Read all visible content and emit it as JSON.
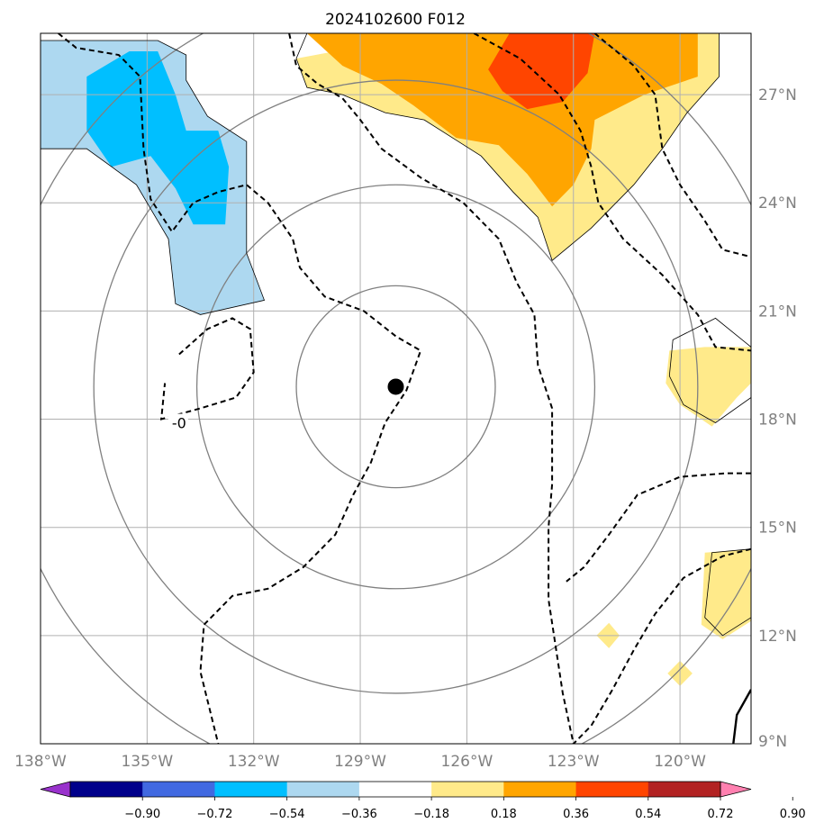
{
  "chart_data": {
    "type": "heatmap",
    "title": "2024102600 F012",
    "x_ticks": [
      "138°W",
      "135°W",
      "132°W",
      "129°W",
      "126°W",
      "123°W",
      "120°W"
    ],
    "x_tick_values": [
      -138,
      -135,
      -132,
      -129,
      -126,
      -123,
      -120
    ],
    "y_ticks": [
      "27°N",
      "24°N",
      "21°N",
      "18°N",
      "15°N",
      "12°N",
      "9°N"
    ],
    "y_tick_values": [
      27,
      24,
      21,
      18,
      15,
      12,
      9
    ],
    "xlim": [
      -138,
      -118
    ],
    "ylim": [
      9,
      28.7
    ],
    "grid": true,
    "center_marker": {
      "lon": -128.0,
      "lat": 18.9
    },
    "range_rings": [
      {
        "center": [
          -128.0,
          18.9
        ],
        "radius_deg": 2.8
      },
      {
        "center": [
          -128.0,
          18.9
        ],
        "radius_deg": 5.6
      },
      {
        "center": [
          -128.0,
          18.9
        ],
        "radius_deg": 8.5
      },
      {
        "center": [
          -128.0,
          18.9
        ],
        "radius_deg": 11.2
      }
    ],
    "colorbar": {
      "ticks": [
        "−0.90",
        "−0.72",
        "−0.54",
        "−0.36",
        "−0.18",
        "0.18",
        "0.36",
        "0.54",
        "0.72",
        "0.90"
      ],
      "levels": [
        -0.9,
        -0.72,
        -0.54,
        -0.36,
        -0.18,
        0.18,
        0.36,
        0.54,
        0.72,
        0.9
      ],
      "colors": [
        "#9932cc",
        "#00008b",
        "#4169e1",
        "#00bfff",
        "#add8f0",
        "#ffffff",
        "#ffea8a",
        "#ffa500",
        "#ff4500",
        "#b22222",
        "#ff80b0"
      ],
      "extend": "both"
    },
    "filled_regions": [
      {
        "level": "-0.18 to -0.36",
        "color": "#add8f0",
        "polygon": [
          [
            -138,
            28.5
          ],
          [
            -134.7,
            28.5
          ],
          [
            -133.9,
            28.1
          ],
          [
            -133.9,
            27.4
          ],
          [
            -133.3,
            26.4
          ],
          [
            -132.2,
            25.7
          ],
          [
            -132.2,
            22.6
          ],
          [
            -131.7,
            21.3
          ],
          [
            -133.5,
            20.9
          ],
          [
            -134.2,
            21.2
          ],
          [
            -134.4,
            23.0
          ],
          [
            -135.3,
            24.5
          ],
          [
            -136.7,
            25.5
          ],
          [
            -138,
            25.5
          ]
        ]
      },
      {
        "level": "-0.36 to -0.54",
        "color": "#00bfff",
        "polygon": [
          [
            -136.7,
            27.5
          ],
          [
            -135.5,
            28.2
          ],
          [
            -134.7,
            28.2
          ],
          [
            -134.2,
            27.0
          ],
          [
            -133.9,
            26.0
          ],
          [
            -133.0,
            26.0
          ],
          [
            -132.7,
            25.0
          ],
          [
            -132.8,
            23.4
          ],
          [
            -133.7,
            23.4
          ],
          [
            -134.2,
            24.4
          ],
          [
            -134.9,
            25.3
          ],
          [
            -136.0,
            25.0
          ],
          [
            -136.7,
            26.0
          ]
        ]
      },
      {
        "level": "0.18 to 0.36",
        "color": "#ffea8a",
        "polygon": [
          [
            -127.0,
            28.7
          ],
          [
            -118.9,
            28.7
          ],
          [
            -118.9,
            27.5
          ],
          [
            -119.8,
            26.5
          ],
          [
            -120.5,
            25.5
          ],
          [
            -121.3,
            24.5
          ],
          [
            -122.5,
            23.3
          ],
          [
            -123.6,
            22.4
          ],
          [
            -124.0,
            23.6
          ],
          [
            -124.7,
            24.3
          ],
          [
            -125.6,
            25.3
          ],
          [
            -127.2,
            26.3
          ],
          [
            -128.3,
            26.5
          ],
          [
            -129.5,
            27.0
          ],
          [
            -130.5,
            27.2
          ],
          [
            -130.8,
            28.0
          ]
        ]
      },
      {
        "level": "0.36 to 0.54",
        "color": "#ffa500",
        "polygon": [
          [
            -130.5,
            28.7
          ],
          [
            -119.5,
            28.7
          ],
          [
            -119.5,
            27.5
          ],
          [
            -121.0,
            27.0
          ],
          [
            -122.4,
            26.3
          ],
          [
            -122.5,
            25.5
          ],
          [
            -123.0,
            24.5
          ],
          [
            -123.6,
            23.9
          ],
          [
            -124.3,
            24.8
          ],
          [
            -125.1,
            25.6
          ],
          [
            -126.3,
            25.8
          ],
          [
            -127.5,
            26.7
          ],
          [
            -128.4,
            27.3
          ],
          [
            -129.5,
            27.8
          ]
        ]
      },
      {
        "level": "0.54 to 0.72",
        "color": "#ff4500",
        "polygon": [
          [
            -124.8,
            28.7
          ],
          [
            -122.4,
            28.7
          ],
          [
            -122.6,
            27.6
          ],
          [
            -123.3,
            26.8
          ],
          [
            -124.3,
            26.6
          ],
          [
            -125.0,
            27.1
          ],
          [
            -125.4,
            27.7
          ]
        ]
      },
      {
        "level": "0.18 to 0.36",
        "color": "#ffea8a",
        "polygon": [
          [
            -118,
            20.0
          ],
          [
            -119.3,
            20.0
          ],
          [
            -120.3,
            19.9
          ],
          [
            -120.4,
            19.0
          ],
          [
            -120.0,
            18.4
          ],
          [
            -119.1,
            17.8
          ],
          [
            -118.4,
            18.6
          ],
          [
            -118,
            19.0
          ]
        ]
      },
      {
        "level": "0.18 to 0.36",
        "color": "#ffea8a",
        "polygon": [
          [
            -118,
            14.4
          ],
          [
            -119.3,
            14.3
          ],
          [
            -119.4,
            12.3
          ],
          [
            -118.8,
            11.9
          ],
          [
            -118,
            12.4
          ]
        ]
      },
      {
        "level": "0.18 to 0.36",
        "color": "#ffea8a",
        "polygon": [
          [
            -122.0,
            12.35
          ],
          [
            -121.7,
            12.0
          ],
          [
            -122.0,
            11.65
          ],
          [
            -122.35,
            12.0
          ]
        ]
      },
      {
        "level": "0.18 to 0.36",
        "color": "#ffea8a",
        "polygon": [
          [
            -120.0,
            11.3
          ],
          [
            -119.65,
            10.95
          ],
          [
            -120.0,
            10.6
          ],
          [
            -120.35,
            10.95
          ]
        ]
      }
    ],
    "dashed_contours": [
      {
        "points": [
          [
            -137.5,
            28.7
          ],
          [
            -137.0,
            28.3
          ],
          [
            -135.8,
            28.1
          ],
          [
            -135.2,
            27.5
          ],
          [
            -135.1,
            25.5
          ],
          [
            -134.9,
            24.1
          ],
          [
            -134.3,
            23.2
          ],
          [
            -133.7,
            24.0
          ],
          [
            -133.0,
            24.3
          ],
          [
            -132.2,
            24.5
          ],
          [
            -131.6,
            24.0
          ],
          [
            -130.9,
            23.0
          ],
          [
            -130.7,
            22.2
          ],
          [
            -130.0,
            21.4
          ],
          [
            -128.9,
            21.0
          ],
          [
            -128.0,
            20.3
          ],
          [
            -127.3,
            19.9
          ],
          [
            -127.7,
            18.8
          ],
          [
            -128.3,
            17.9
          ],
          [
            -128.7,
            16.8
          ],
          [
            -129.2,
            15.9
          ],
          [
            -129.7,
            14.8
          ],
          [
            -130.6,
            13.9
          ],
          [
            -131.6,
            13.3
          ],
          [
            -132.6,
            13.1
          ],
          [
            -133.4,
            12.3
          ],
          [
            -133.5,
            11.0
          ],
          [
            -133.0,
            9.0
          ]
        ]
      },
      {
        "points": [
          [
            -131.0,
            28.7
          ],
          [
            -130.8,
            27.8
          ],
          [
            -130.2,
            27.3
          ],
          [
            -129.5,
            26.9
          ],
          [
            -129.0,
            26.3
          ],
          [
            -128.4,
            25.5
          ],
          [
            -127.3,
            24.7
          ],
          [
            -126.1,
            24.0
          ],
          [
            -125.1,
            23.0
          ],
          [
            -124.6,
            21.8
          ],
          [
            -124.1,
            20.9
          ],
          [
            -124.0,
            19.5
          ],
          [
            -123.6,
            18.3
          ],
          [
            -123.6,
            16.2
          ],
          [
            -123.7,
            15.0
          ],
          [
            -123.7,
            13.0
          ],
          [
            -123.3,
            10.4
          ],
          [
            -123.0,
            9.0
          ]
        ]
      },
      {
        "points": [
          [
            -125.8,
            28.7
          ],
          [
            -124.5,
            28.0
          ],
          [
            -123.4,
            27.0
          ],
          [
            -122.8,
            26.0
          ],
          [
            -122.5,
            25.0
          ],
          [
            -122.3,
            24.0
          ],
          [
            -121.6,
            23.0
          ],
          [
            -120.5,
            22.0
          ],
          [
            -119.5,
            20.9
          ],
          [
            -119.0,
            20.0
          ],
          [
            -118,
            19.9
          ]
        ]
      },
      {
        "points": [
          [
            -122.4,
            28.7
          ],
          [
            -121.3,
            27.8
          ],
          [
            -120.7,
            27.0
          ],
          [
            -120.5,
            25.5
          ],
          [
            -120.0,
            24.5
          ],
          [
            -119.3,
            23.5
          ],
          [
            -118.8,
            22.7
          ],
          [
            -118,
            22.5
          ]
        ]
      },
      {
        "points": [
          [
            -118,
            16.5
          ],
          [
            -118.7,
            16.5
          ],
          [
            -120.0,
            16.4
          ],
          [
            -121.2,
            15.9
          ],
          [
            -122.0,
            14.8
          ],
          [
            -122.7,
            13.9
          ],
          [
            -123.2,
            13.5
          ]
        ]
      },
      {
        "points": [
          [
            -118,
            14.4
          ],
          [
            -118.8,
            14.2
          ],
          [
            -119.9,
            13.6
          ],
          [
            -120.7,
            12.6
          ],
          [
            -121.3,
            11.6
          ],
          [
            -121.9,
            10.5
          ],
          [
            -122.5,
            9.5
          ],
          [
            -123.0,
            9.0
          ]
        ]
      },
      {
        "points": [
          [
            -134.1,
            19.8
          ],
          [
            -133.3,
            20.5
          ],
          [
            -132.6,
            20.8
          ],
          [
            -132.1,
            20.5
          ],
          [
            -132.0,
            19.3
          ],
          [
            -132.5,
            18.6
          ],
          [
            -133.5,
            18.3
          ],
          [
            -134.6,
            18.0
          ],
          [
            -134.5,
            19.0
          ]
        ]
      }
    ],
    "contour_labels": [
      {
        "text": "-0",
        "lon": -134.1,
        "lat": 17.9
      }
    ],
    "thin_outlines": [
      {
        "points": [
          [
            -138,
            28.5
          ],
          [
            -134.7,
            28.5
          ],
          [
            -133.9,
            28.1
          ],
          [
            -133.9,
            27.4
          ],
          [
            -133.3,
            26.4
          ],
          [
            -132.2,
            25.7
          ],
          [
            -132.2,
            22.6
          ],
          [
            -131.7,
            21.3
          ],
          [
            -133.5,
            20.9
          ],
          [
            -134.2,
            21.2
          ],
          [
            -134.4,
            23.0
          ],
          [
            -135.3,
            24.5
          ],
          [
            -136.7,
            25.5
          ],
          [
            -138,
            25.5
          ]
        ]
      },
      {
        "points": [
          [
            -130.5,
            28.7
          ],
          [
            -130.8,
            28.0
          ],
          [
            -130.5,
            27.2
          ],
          [
            -129.5,
            27.0
          ],
          [
            -128.3,
            26.5
          ],
          [
            -127.2,
            26.3
          ],
          [
            -125.6,
            25.3
          ],
          [
            -124.7,
            24.3
          ],
          [
            -124.0,
            23.6
          ],
          [
            -123.6,
            22.4
          ],
          [
            -122.5,
            23.3
          ],
          [
            -121.3,
            24.5
          ],
          [
            -120.5,
            25.5
          ],
          [
            -119.8,
            26.5
          ],
          [
            -118.9,
            27.5
          ],
          [
            -118.9,
            28.7
          ]
        ]
      },
      {
        "points": [
          [
            -118,
            20.0
          ],
          [
            -119.0,
            20.8
          ],
          [
            -120.2,
            20.2
          ],
          [
            -120.3,
            19.2
          ],
          [
            -119.9,
            18.4
          ],
          [
            -119.0,
            17.9
          ],
          [
            -118,
            18.6
          ]
        ]
      },
      {
        "points": [
          [
            -118,
            14.4
          ],
          [
            -119.1,
            14.3
          ],
          [
            -119.3,
            12.5
          ],
          [
            -118.8,
            12.0
          ],
          [
            -118,
            12.5
          ]
        ]
      }
    ],
    "thick_line": {
      "points": [
        [
          -118,
          10.5
        ],
        [
          -118.4,
          9.8
        ],
        [
          -118.5,
          9.0
        ]
      ]
    }
  }
}
